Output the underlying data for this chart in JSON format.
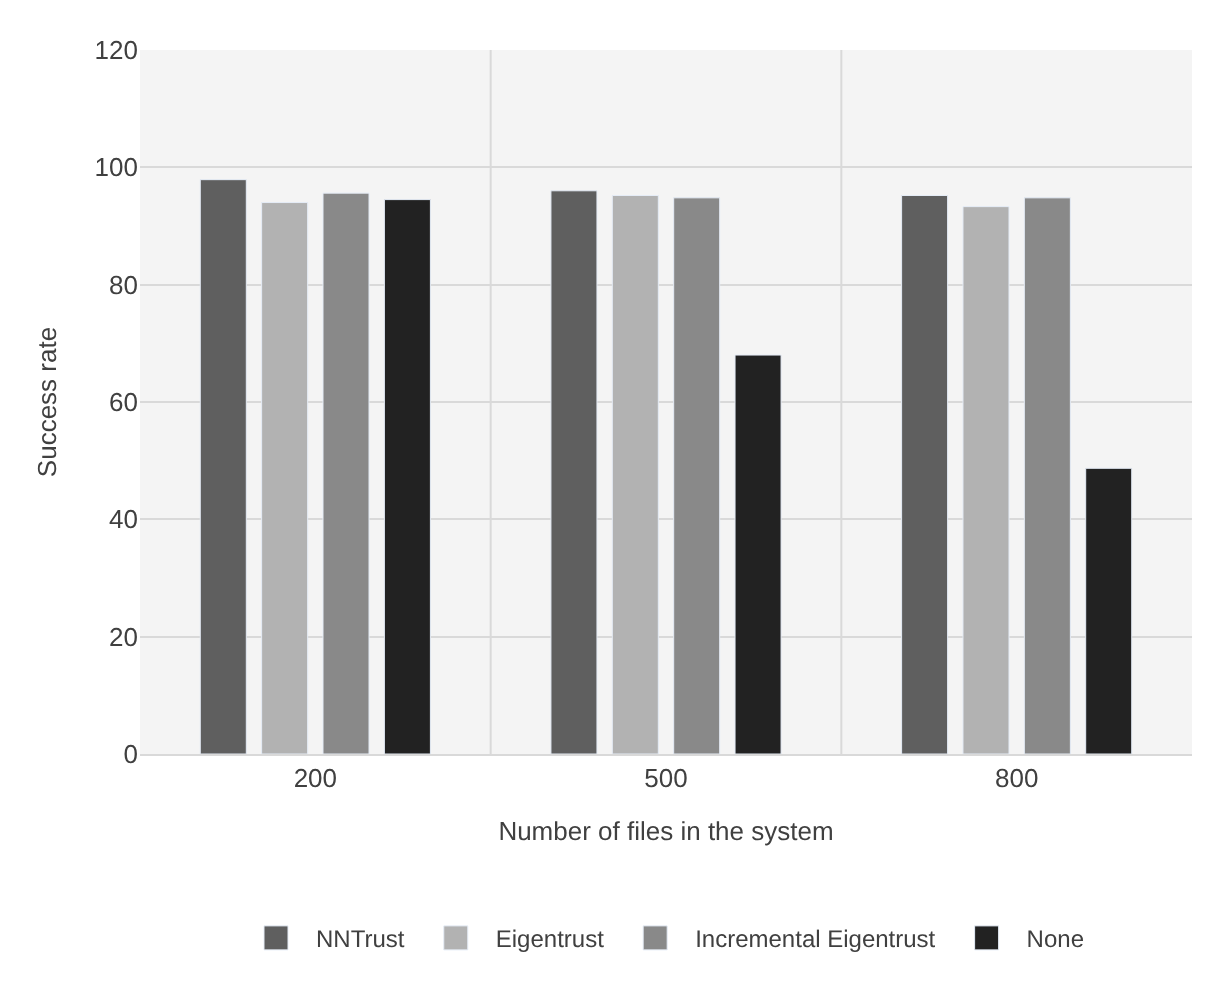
{
  "chart_data": {
    "type": "bar",
    "xlabel": "Number of files in the system",
    "ylabel": "Success rate",
    "categories": [
      "200",
      "500",
      "800"
    ],
    "series": [
      {
        "name": "NNTrust",
        "color": "#5f5f5f",
        "values": [
          97.9,
          96,
          95.2
        ]
      },
      {
        "name": "Eigentrust",
        "color": "#b2b2b2",
        "values": [
          94,
          95.2,
          93.3
        ]
      },
      {
        "name": "Incremental Eigentrust",
        "color": "#898989",
        "values": [
          95.6,
          94.8,
          94.8
        ]
      },
      {
        "name": "None",
        "color": "#222222",
        "values": [
          94.5,
          68,
          48.7
        ]
      }
    ],
    "ylim": [
      0,
      120
    ],
    "yticks": [
      0,
      20,
      40,
      60,
      80,
      100,
      120
    ],
    "grid": true,
    "legend": "bottom"
  }
}
